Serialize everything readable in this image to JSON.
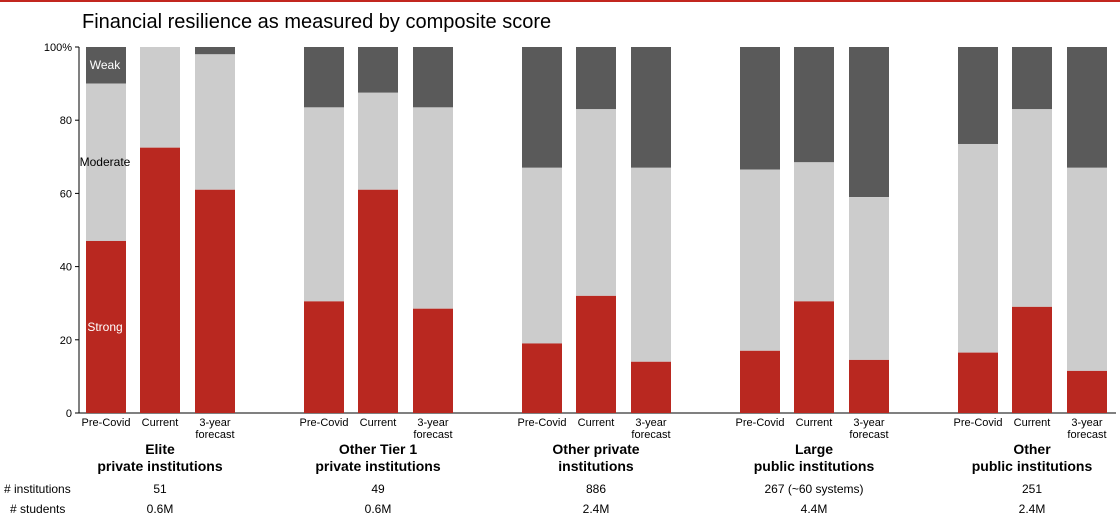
{
  "chart_data": {
    "type": "bar",
    "stacked": true,
    "title": "Financial resilience as measured by composite score",
    "ylim": [
      0,
      100
    ],
    "yticks": [
      {
        "value": 0,
        "label": "0"
      },
      {
        "value": 20,
        "label": "20"
      },
      {
        "value": 40,
        "label": "40"
      },
      {
        "value": 60,
        "label": "60"
      },
      {
        "value": 80,
        "label": "80"
      },
      {
        "value": 100,
        "label": "100%"
      }
    ],
    "series_labels": {
      "weak": "Weak",
      "moderate": "Moderate",
      "strong": "Strong"
    },
    "colors": {
      "strong": "#b92820",
      "moderate": "#cccccc",
      "weak": "#5a5a5a",
      "strong_label": "#ffffff",
      "weak_label": "#ffffff"
    },
    "row_labels": {
      "institutions": "# institutions",
      "students": "# students"
    },
    "groups": [
      {
        "name_line1": "Elite",
        "name_line2": "private institutions",
        "institutions": "51",
        "students": "0.6M",
        "bars": [
          {
            "label": [
              "Pre-Covid"
            ],
            "strong": 47,
            "moderate": 43
          },
          {
            "label": [
              "Current"
            ],
            "strong": 72.5,
            "moderate": 27.5
          },
          {
            "label": [
              "3-year",
              "forecast"
            ],
            "strong": 61,
            "moderate": 37
          }
        ]
      },
      {
        "name_line1": "Other Tier 1",
        "name_line2": "private institutions",
        "institutions": "49",
        "students": "0.6M",
        "bars": [
          {
            "label": [
              "Pre-Covid"
            ],
            "strong": 30.5,
            "moderate": 53
          },
          {
            "label": [
              "Current"
            ],
            "strong": 61,
            "moderate": 26.5
          },
          {
            "label": [
              "3-year",
              "forecast"
            ],
            "strong": 28.5,
            "moderate": 55
          }
        ]
      },
      {
        "name_line1": "Other private",
        "name_line2": "institutions",
        "institutions": "886",
        "students": "2.4M",
        "bars": [
          {
            "label": [
              "Pre-Covid"
            ],
            "strong": 19,
            "moderate": 48
          },
          {
            "label": [
              "Current"
            ],
            "strong": 32,
            "moderate": 51
          },
          {
            "label": [
              "3-year",
              "forecast"
            ],
            "strong": 14,
            "moderate": 53
          }
        ]
      },
      {
        "name_line1": "Large",
        "name_line2": "public institutions",
        "institutions": "267 (~60 systems)",
        "students": "4.4M",
        "bars": [
          {
            "label": [
              "Pre-Covid"
            ],
            "strong": 17,
            "moderate": 49.5
          },
          {
            "label": [
              "Current"
            ],
            "strong": 30.5,
            "moderate": 38
          },
          {
            "label": [
              "3-year",
              "forecast"
            ],
            "strong": 14.5,
            "moderate": 44.5
          }
        ]
      },
      {
        "name_line1": "Other",
        "name_line2": "public institutions",
        "institutions": "251",
        "students": "2.4M",
        "bars": [
          {
            "label": [
              "Pre-Covid"
            ],
            "strong": 16.5,
            "moderate": 57
          },
          {
            "label": [
              "Current"
            ],
            "strong": 29,
            "moderate": 54
          },
          {
            "label": [
              "3-year",
              "forecast"
            ],
            "strong": 11.5,
            "moderate": 55.5
          }
        ]
      }
    ]
  }
}
